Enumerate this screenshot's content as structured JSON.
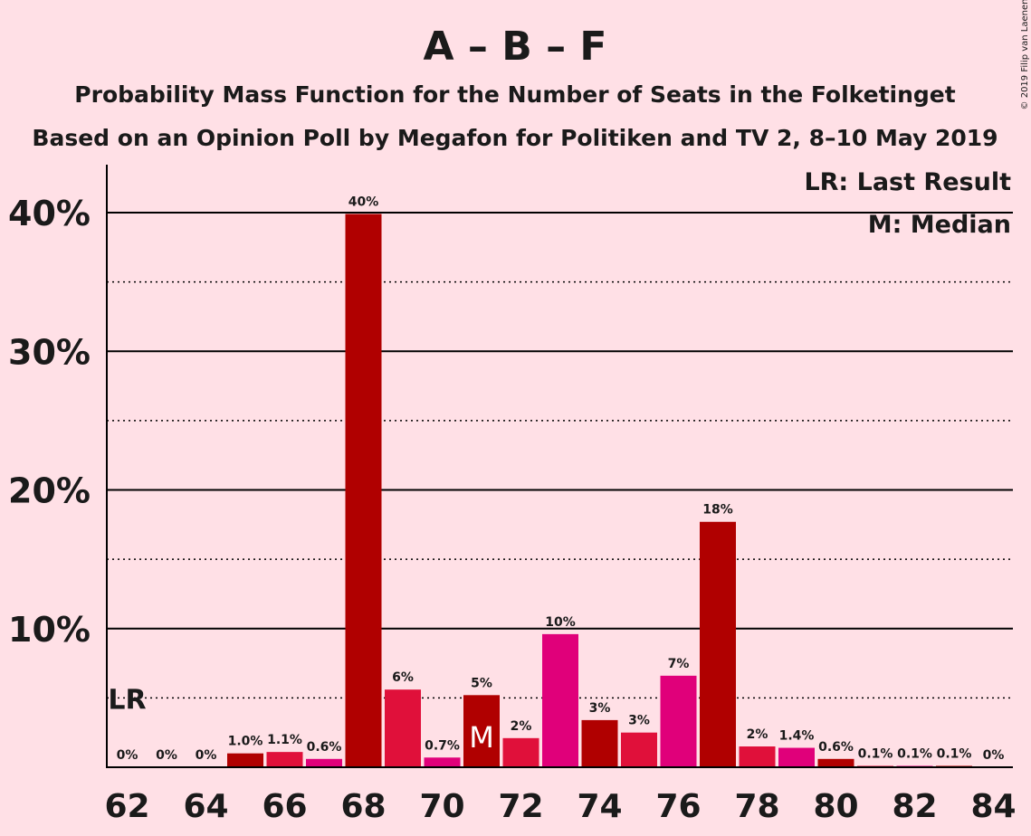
{
  "chart_data": {
    "type": "bar",
    "title": "A – B – F",
    "subtitle": "Probability Mass Function for the Number of Seats in the Folketinget",
    "subtitle2": "Based on an Opinion Poll by Megafon for Politiken and TV 2, 8–10 May 2019",
    "copyright": "© 2019 Filip van Laenen",
    "legend": {
      "lr": "LR: Last Result",
      "median": "M: Median",
      "placement": "top-right"
    },
    "ylim": [
      0,
      40
    ],
    "yticks": [
      {
        "value": 10,
        "label": "10%"
      },
      {
        "value": 20,
        "label": "20%"
      },
      {
        "value": 30,
        "label": "30%"
      },
      {
        "value": 40,
        "label": "40%"
      }
    ],
    "xtick_labels": [
      "62",
      "64",
      "66",
      "68",
      "70",
      "72",
      "74",
      "76",
      "78",
      "80",
      "82",
      "84"
    ],
    "last_result": {
      "seats": 62,
      "label": "LR"
    },
    "median": {
      "seats": 71,
      "label": "M"
    },
    "colors": {
      "background": "#ffe0e6",
      "dark_red": "#b00000",
      "crimson": "#e0103a",
      "magenta": "#e0007a"
    },
    "bars": [
      {
        "seats": 62,
        "value": 0,
        "label": "0%",
        "color": "#b00000"
      },
      {
        "seats": 63,
        "value": 0,
        "label": "0%",
        "color": "#e0103a"
      },
      {
        "seats": 64,
        "value": 0,
        "label": "0%",
        "color": "#e0007a"
      },
      {
        "seats": 65,
        "value": 1.0,
        "label": "1.0%",
        "color": "#b00000"
      },
      {
        "seats": 66,
        "value": 1.1,
        "label": "1.1%",
        "color": "#e0103a"
      },
      {
        "seats": 67,
        "value": 0.6,
        "label": "0.6%",
        "color": "#e0007a"
      },
      {
        "seats": 68,
        "value": 39.9,
        "label": "40%",
        "color": "#b00000"
      },
      {
        "seats": 69,
        "value": 5.6,
        "label": "6%",
        "color": "#e0103a"
      },
      {
        "seats": 70,
        "value": 0.7,
        "label": "0.7%",
        "color": "#e0007a"
      },
      {
        "seats": 71,
        "value": 5.2,
        "label": "5%",
        "color": "#b00000"
      },
      {
        "seats": 72,
        "value": 2.1,
        "label": "2%",
        "color": "#e0103a"
      },
      {
        "seats": 73,
        "value": 9.6,
        "label": "10%",
        "color": "#e0007a"
      },
      {
        "seats": 74,
        "value": 3.4,
        "label": "3%",
        "color": "#b00000"
      },
      {
        "seats": 75,
        "value": 2.5,
        "label": "3%",
        "color": "#e0103a"
      },
      {
        "seats": 76,
        "value": 6.6,
        "label": "7%",
        "color": "#e0007a"
      },
      {
        "seats": 77,
        "value": 17.7,
        "label": "18%",
        "color": "#b00000"
      },
      {
        "seats": 78,
        "value": 1.5,
        "label": "2%",
        "color": "#e0103a"
      },
      {
        "seats": 79,
        "value": 1.4,
        "label": "1.4%",
        "color": "#e0007a"
      },
      {
        "seats": 80,
        "value": 0.6,
        "label": "0.6%",
        "color": "#b00000"
      },
      {
        "seats": 81,
        "value": 0.1,
        "label": "0.1%",
        "color": "#e0103a"
      },
      {
        "seats": 82,
        "value": 0.1,
        "label": "0.1%",
        "color": "#e0007a"
      },
      {
        "seats": 83,
        "value": 0.1,
        "label": "0.1%",
        "color": "#b00000"
      },
      {
        "seats": 84,
        "value": 0,
        "label": "0%",
        "color": "#e0103a"
      }
    ]
  }
}
